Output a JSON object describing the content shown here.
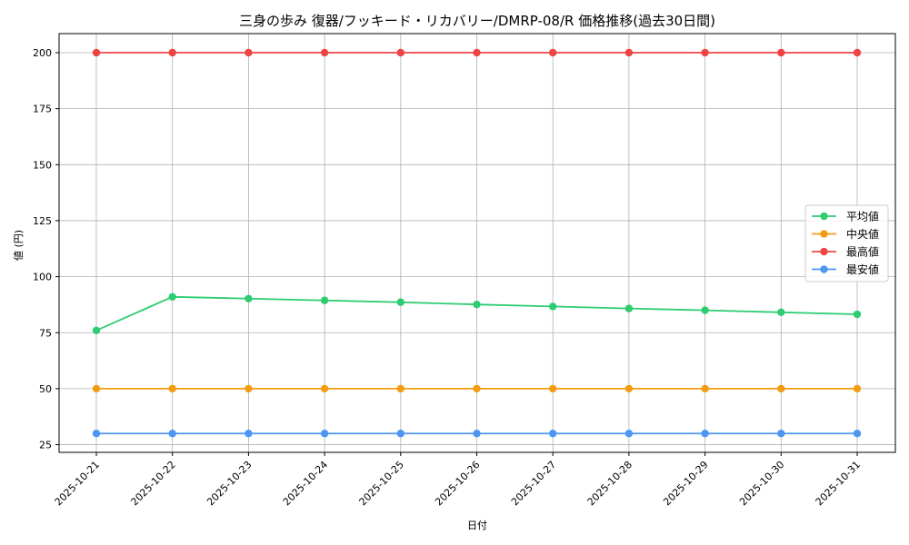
{
  "chart_data": {
    "type": "line",
    "title": "三身の歩み 復器/フッキード・リカバリー/DMRP-08/R 価格推移(過去30日間)",
    "xlabel": "日付",
    "ylabel": "値 (円)",
    "ylim": [
      21.5,
      207.5
    ],
    "yticks": [
      25,
      50,
      75,
      100,
      125,
      150,
      175,
      200
    ],
    "grid": true,
    "legend_position": "center right",
    "categories": [
      "2025-10-21",
      "2025-10-22",
      "2025-10-23",
      "2025-10-24",
      "2025-10-25",
      "2025-10-26",
      "2025-10-27",
      "2025-10-28",
      "2025-10-29",
      "2025-10-30",
      "2025-10-31"
    ],
    "series": [
      {
        "name": "平均値",
        "color": "#2ecc71",
        "values": [
          76,
          91,
          90.2,
          89.4,
          88.6,
          87.6,
          86.7,
          85.8,
          85.0,
          84.1,
          83.2
        ]
      },
      {
        "name": "中央値",
        "color": "#f39c12",
        "values": [
          50,
          50,
          50,
          50,
          50,
          50,
          50,
          50,
          50,
          50,
          50
        ]
      },
      {
        "name": "最高値",
        "color": "#ef4444",
        "values": [
          200,
          200,
          200,
          200,
          200,
          200,
          200,
          200,
          200,
          200,
          200
        ]
      },
      {
        "name": "最安値",
        "color": "#4e96f4",
        "values": [
          30,
          30,
          30,
          30,
          30,
          30,
          30,
          30,
          30,
          30,
          30
        ]
      }
    ]
  }
}
